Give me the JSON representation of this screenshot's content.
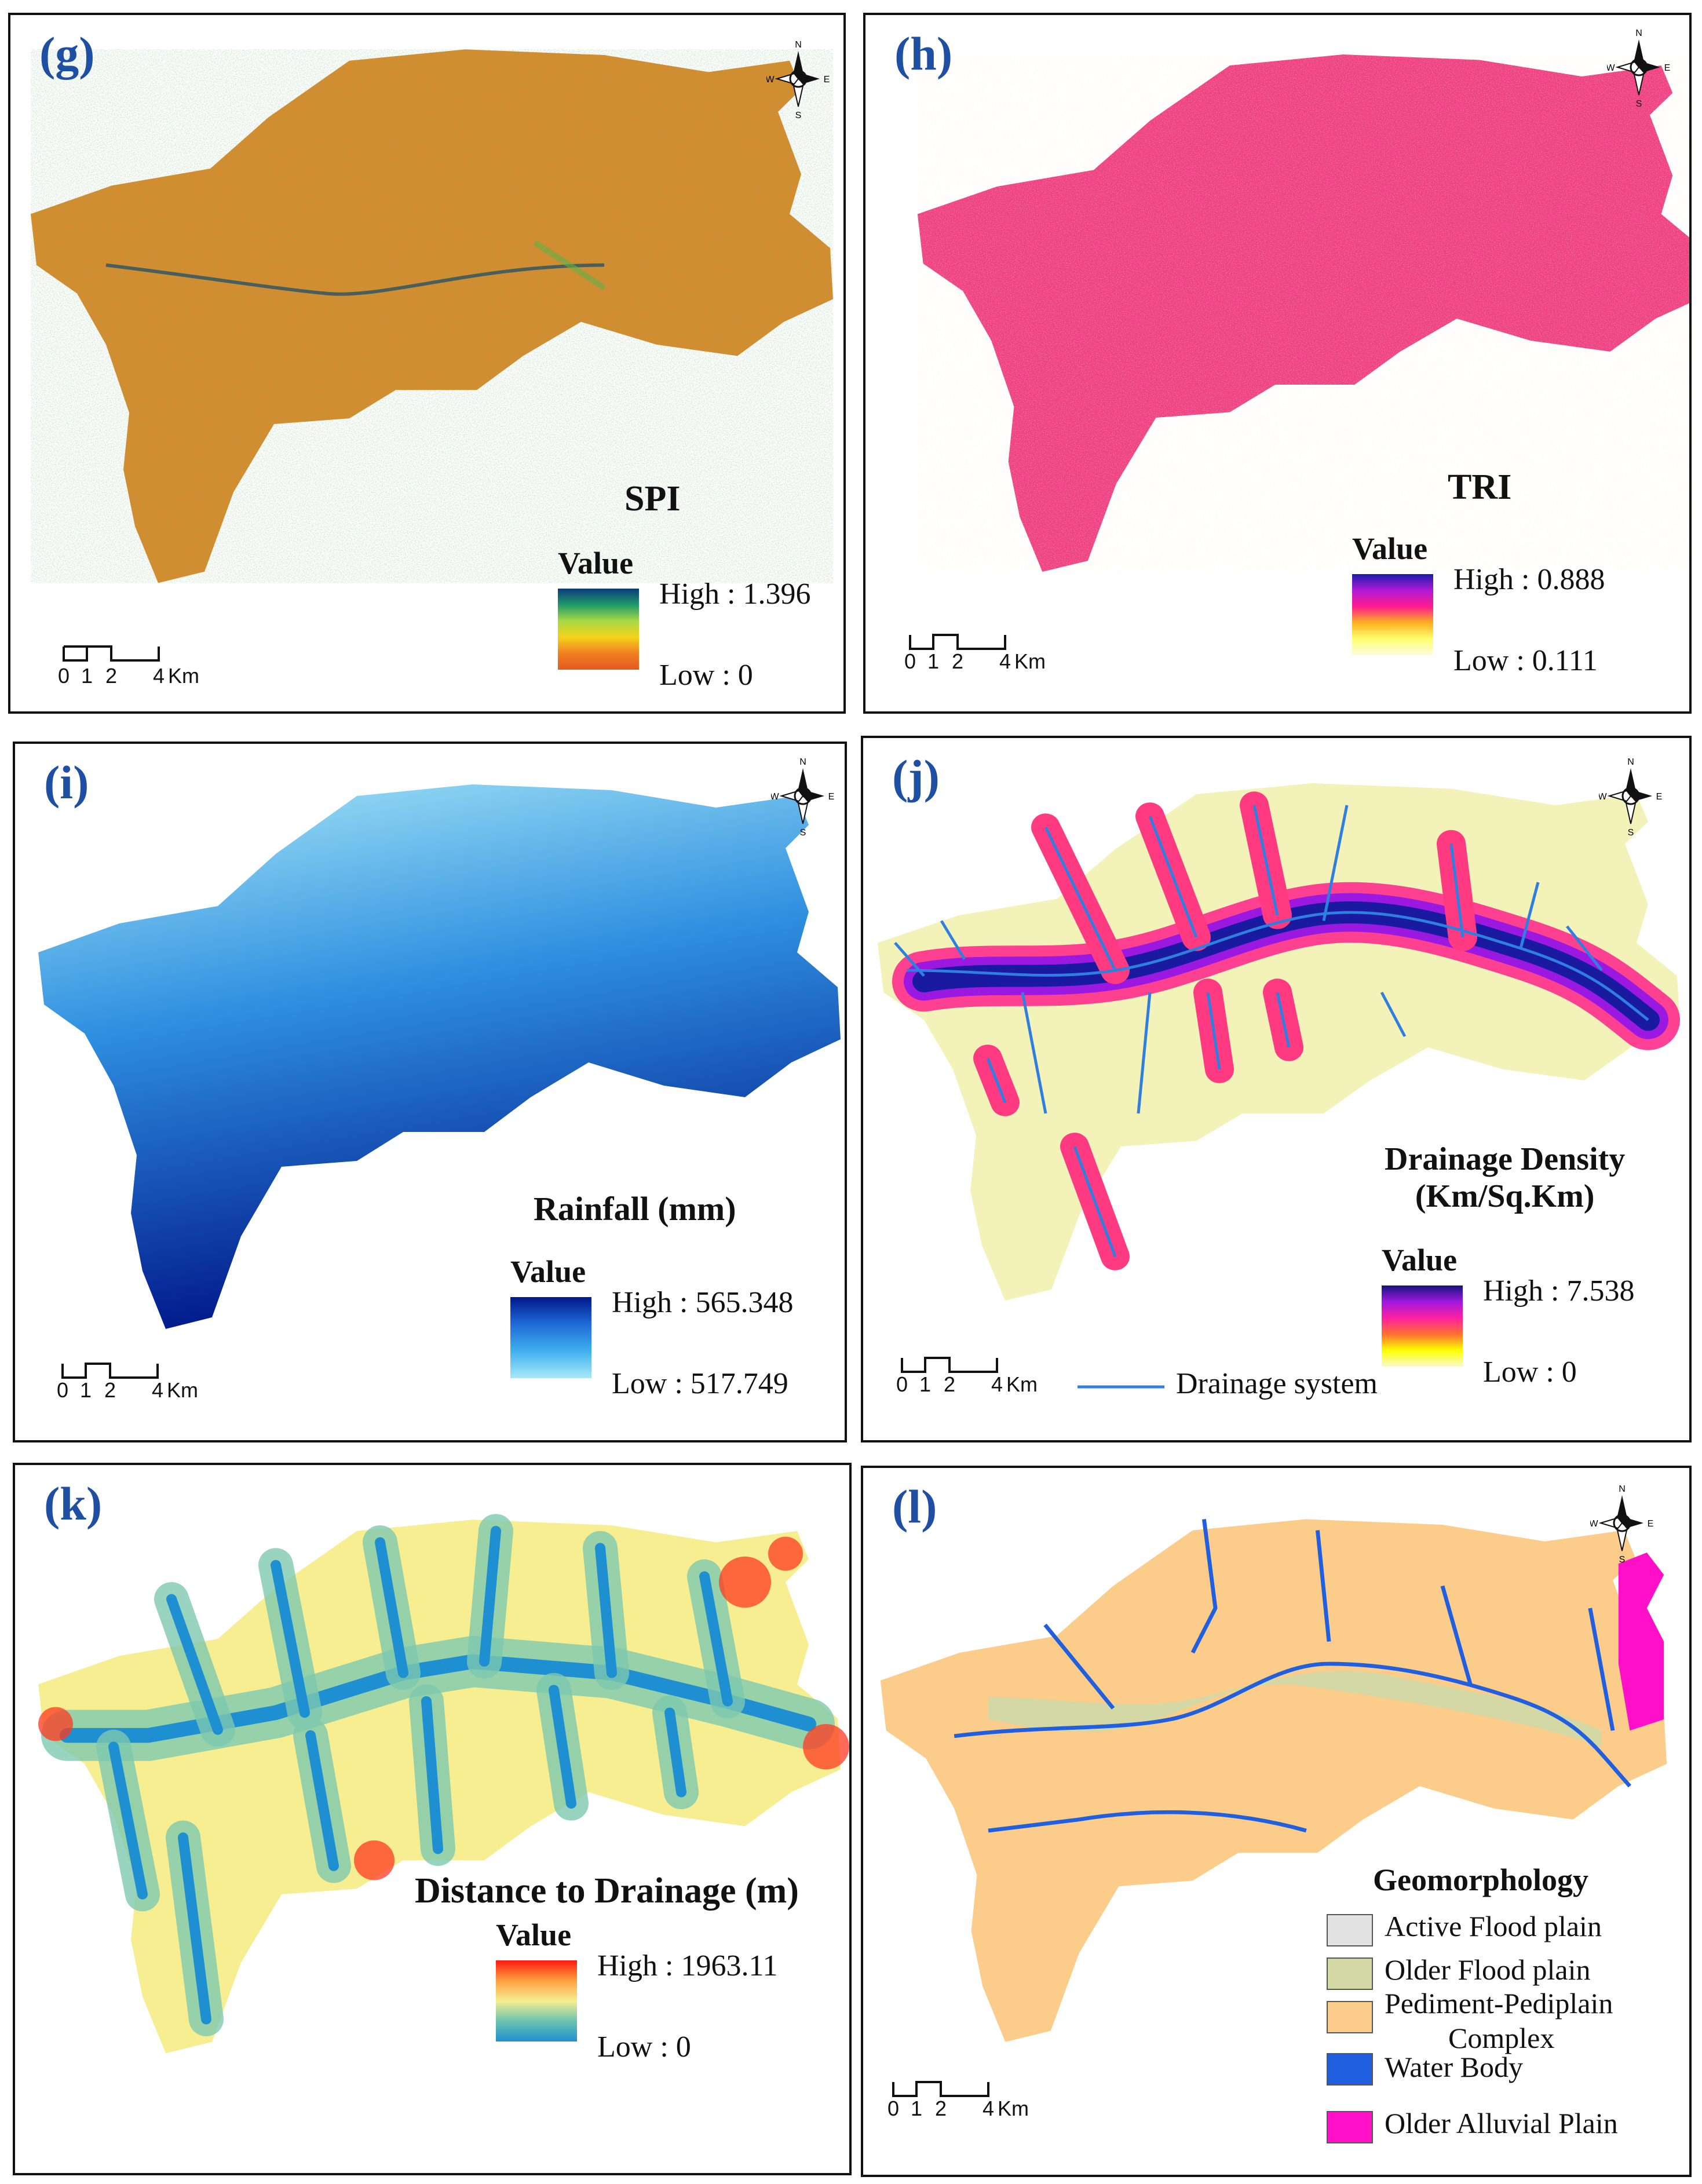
{
  "panels": {
    "g": {
      "label": "(g)",
      "title": "SPI",
      "value_heading": "Value",
      "high": "High : 1.396",
      "low": "Low : 0",
      "ramp_colors": [
        "#0b3a7a",
        "#1f9a6a",
        "#a8d844",
        "#f4d21a",
        "#f08020",
        "#e45a20"
      ],
      "fill": "#d98a2a"
    },
    "h": {
      "label": "(h)",
      "title": "TRI",
      "value_heading": "Value",
      "high": "High : 0.888",
      "low": "Low : 0.111",
      "ramp_colors": [
        "#1a1aa8",
        "#b01ad8",
        "#ff1a8c",
        "#ffb020",
        "#ffff70",
        "#fffbe0"
      ],
      "fill": "#ee3f82"
    },
    "i": {
      "label": "(i)",
      "title": "Rainfall (mm)",
      "value_heading": "Value",
      "high": "High : 565.348",
      "low": "Low : 517.749",
      "ramp_colors": [
        "#00178a",
        "#1f6ad8",
        "#3fb0ef",
        "#a9e8f7"
      ]
    },
    "j": {
      "label": "(j)",
      "title_line1": "Drainage Density",
      "title_line2": "(Km/Sq.Km)",
      "value_heading": "Value",
      "high": "High : 7.538",
      "low": "Low : 0",
      "ramp_colors": [
        "#14147a",
        "#a018e0",
        "#ff20a0",
        "#ff7030",
        "#ffff00",
        "#fafad0"
      ],
      "drainage_legend": "Drainage system",
      "drainage_color": "#2f7fe0"
    },
    "k": {
      "label": "(k)",
      "title": "Distance to Drainage (m)",
      "value_heading": "Value",
      "high": "High : 1963.11",
      "low": "Low : 0",
      "ramp_colors": [
        "#ff1a10",
        "#ffa040",
        "#f6ee90",
        "#6ac3b0",
        "#1e8fd0"
      ]
    },
    "l": {
      "label": "(l)",
      "title": "Geomorphology",
      "legend": [
        {
          "label": "Active Flood plain",
          "color": "#e2e2e2"
        },
        {
          "label": "Older Flood plain",
          "color": "#d4d8a4"
        },
        {
          "label": "Pediment-Pediplain",
          "label2": "Complex",
          "color": "#fbcc8a"
        },
        {
          "label": "Water Body",
          "color": "#1f5fe0"
        },
        {
          "label": "Older Alluvial Plain",
          "color": "#ff10c8"
        }
      ]
    }
  },
  "scale": {
    "ticks": [
      "0",
      "1",
      "2",
      "4"
    ],
    "unit": "Km"
  },
  "north": {
    "n": "N",
    "s": "S",
    "e": "E",
    "w": "W"
  }
}
